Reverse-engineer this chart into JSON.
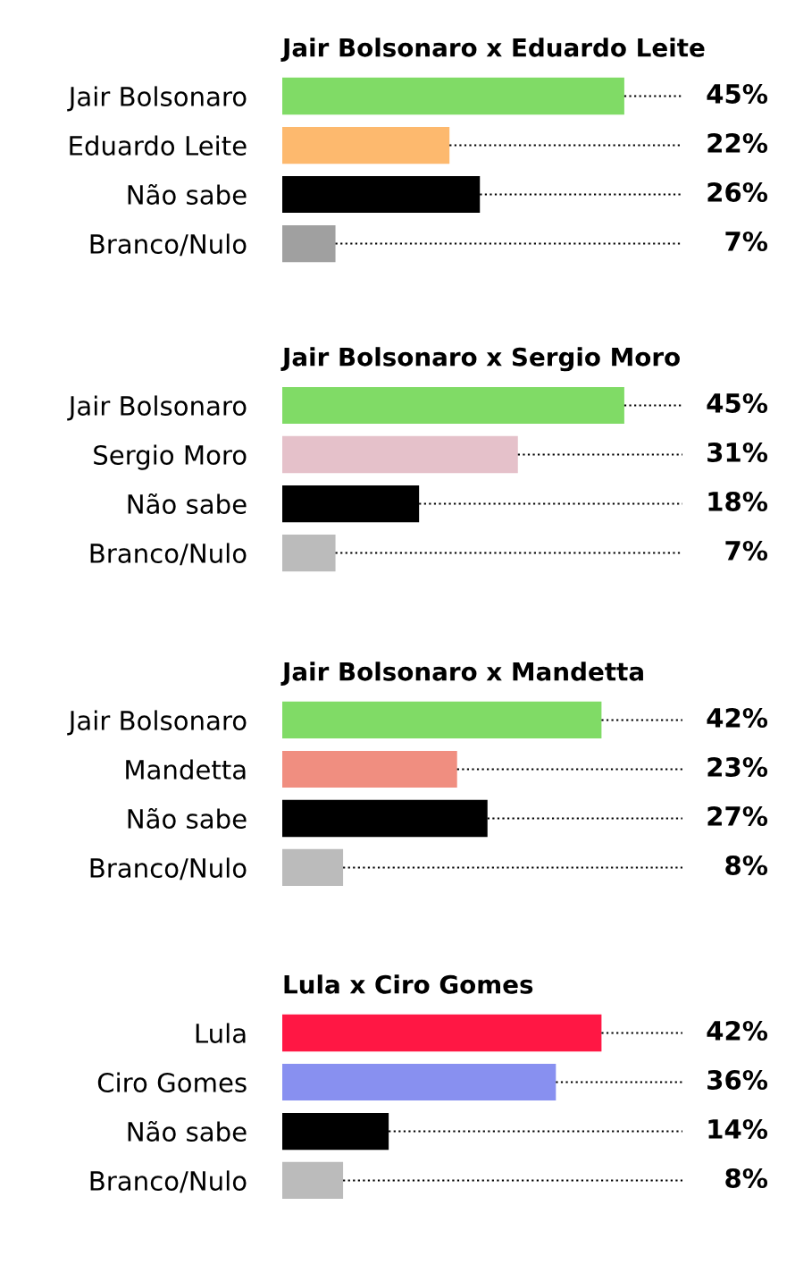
{
  "chart_data": [
    {
      "type": "bar",
      "orientation": "horizontal",
      "title": "Jair Bolsonaro x Eduardo Leite",
      "categories": [
        "Jair Bolsonaro",
        "Eduardo Leite",
        "Não sabe",
        "Branco/Nulo"
      ],
      "values": [
        45,
        22,
        26,
        7
      ],
      "value_labels": [
        "45%",
        "22%",
        "26%",
        "7%"
      ],
      "colors": [
        "#80db66",
        "#fdb96e",
        "#000000",
        "#a0a0a0"
      ]
    },
    {
      "type": "bar",
      "orientation": "horizontal",
      "title": "Jair Bolsonaro x Sergio Moro",
      "categories": [
        "Jair Bolsonaro",
        "Sergio Moro",
        "Não sabe",
        "Branco/Nulo"
      ],
      "values": [
        45,
        31,
        18,
        7
      ],
      "value_labels": [
        "45%",
        "31%",
        "18%",
        "7%"
      ],
      "colors": [
        "#80db66",
        "#e5c1ca",
        "#000000",
        "#bbbbbb"
      ]
    },
    {
      "type": "bar",
      "orientation": "horizontal",
      "title": "Jair Bolsonaro x Mandetta",
      "categories": [
        "Jair Bolsonaro",
        "Mandetta",
        "Não sabe",
        "Branco/Nulo"
      ],
      "values": [
        42,
        23,
        27,
        8
      ],
      "value_labels": [
        "42%",
        "23%",
        "27%",
        "8%"
      ],
      "colors": [
        "#80db66",
        "#f08e80",
        "#000000",
        "#bbbbbb"
      ]
    },
    {
      "type": "bar",
      "orientation": "horizontal",
      "title": "Lula x Ciro Gomes",
      "categories": [
        "Lula",
        "Ciro Gomes",
        "Não sabe",
        "Branco/Nulo"
      ],
      "values": [
        42,
        36,
        14,
        8
      ],
      "value_labels": [
        "42%",
        "36%",
        "14%",
        "8%"
      ],
      "colors": [
        "#ff1744",
        "#8890f0",
        "#000000",
        "#bbbbbb"
      ]
    }
  ]
}
